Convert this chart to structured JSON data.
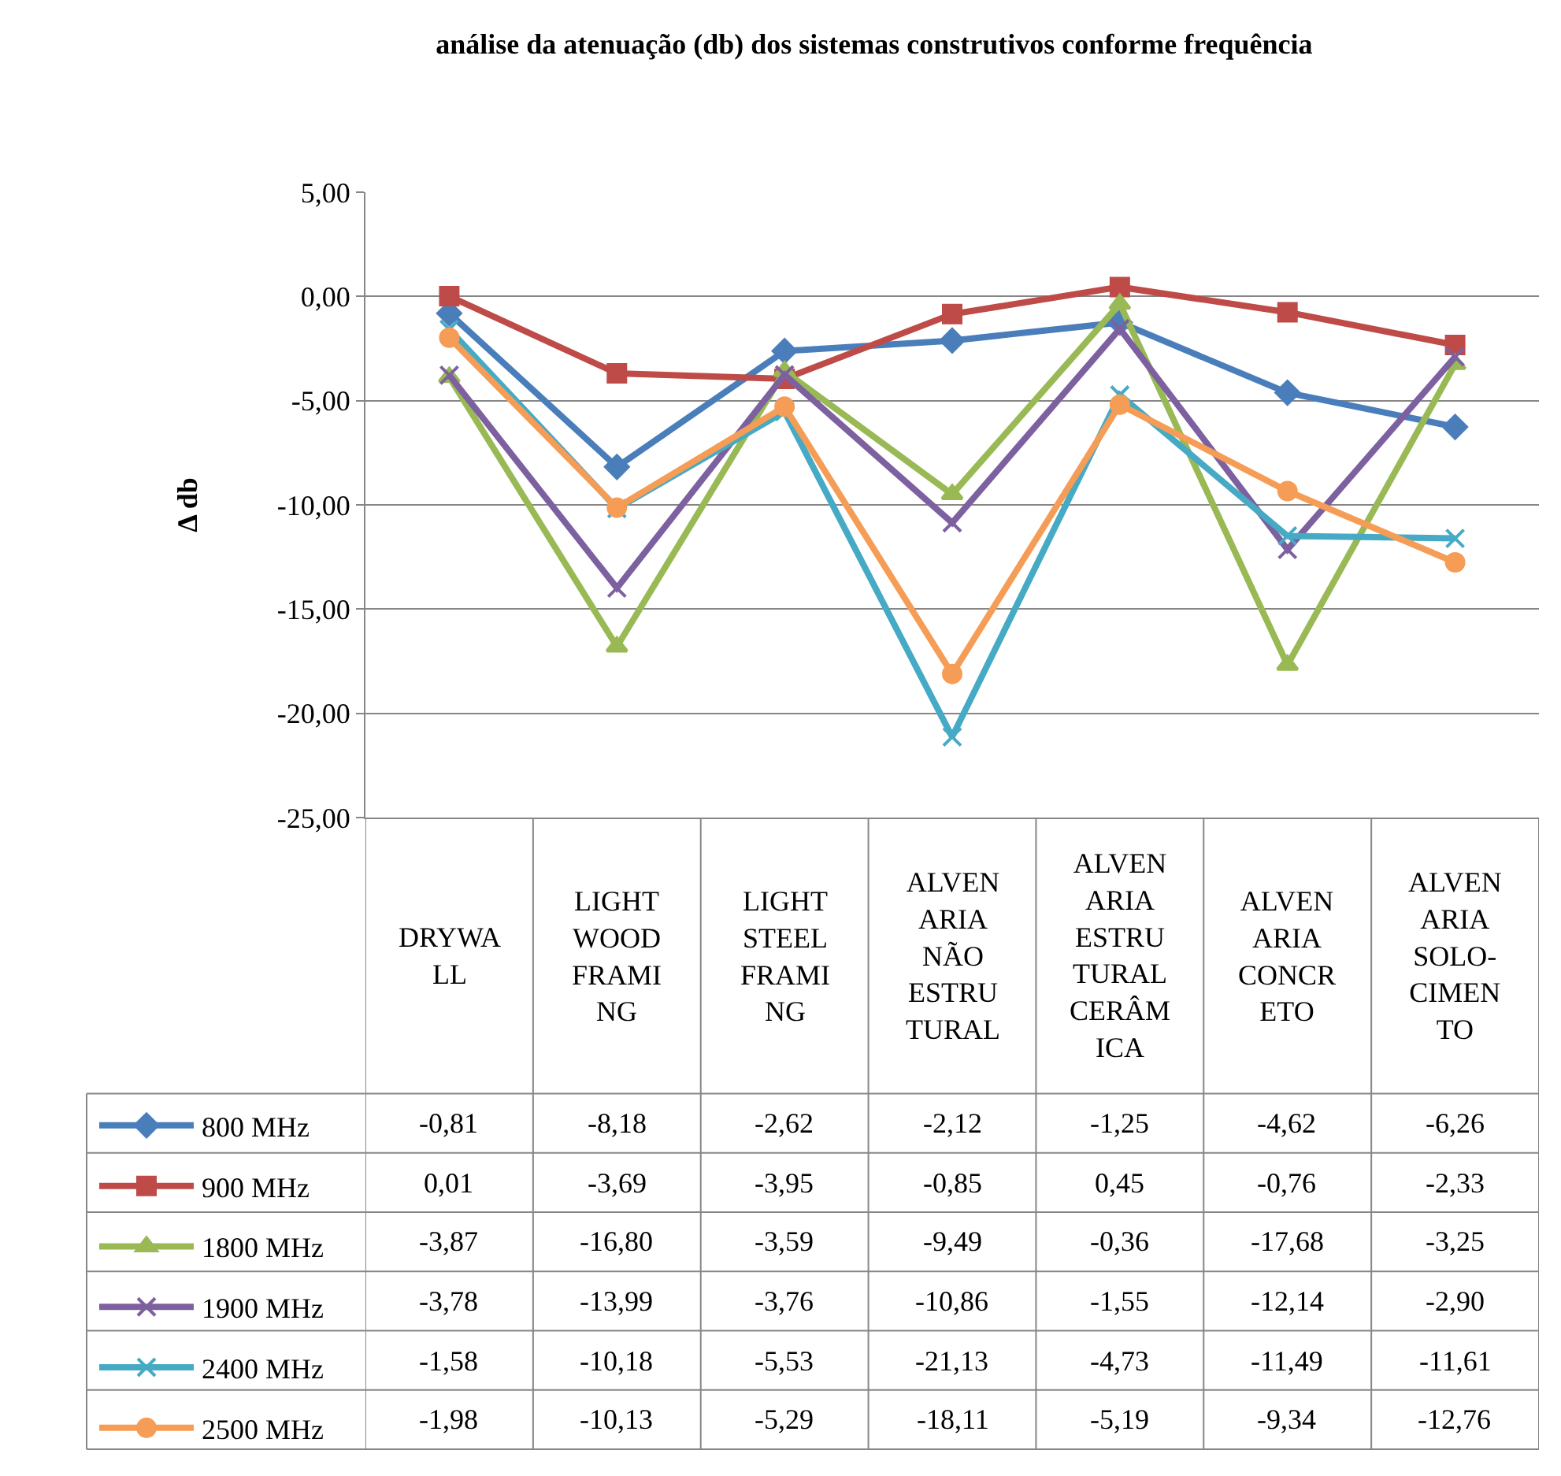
{
  "chart_data": {
    "type": "line",
    "title": "análise da atenuação (db) dos sistemas construtivos conforme frequência",
    "ylabel": "Δ db",
    "categories": [
      "DRYWALL",
      "LIGHT WOOD FRAMING",
      "LIGHT STEEL FRAMING",
      "ALVENARIA NÃO ESTRUTURAL",
      "ALVENARIA ESTRUTURAL CERÂMICA",
      "ALVENARIA CONCRETO",
      "ALVENARIA SOLO-CIMENTO"
    ],
    "ylim": [
      -25,
      5
    ],
    "yticks": [
      {
        "value": -25,
        "label": "-25,00"
      },
      {
        "value": -20,
        "label": "-20,00"
      },
      {
        "value": -15,
        "label": "-15,00"
      },
      {
        "value": -10,
        "label": "-10,00"
      },
      {
        "value": -5,
        "label": "-5,00"
      },
      {
        "value": 0,
        "label": "0,00"
      },
      {
        "value": 5,
        "label": "5,00"
      }
    ],
    "grid": "y",
    "legend": "bottom left",
    "line_style": "solid",
    "series": [
      {
        "name": "800 MHz",
        "color": "#4a7ebb",
        "marker": "diamond",
        "values": [
          -0.81,
          -8.18,
          -2.62,
          -2.12,
          -1.25,
          -4.62,
          -6.26
        ],
        "value_labels": [
          "-0,81",
          "-8,18",
          "-2,62",
          "-2,12",
          "-1,25",
          "-4,62",
          "-6,26"
        ]
      },
      {
        "name": "900 MHz",
        "color": "#be4b48",
        "marker": "square",
        "values": [
          0.01,
          -3.69,
          -3.95,
          -0.85,
          0.45,
          -0.76,
          -2.33
        ],
        "value_labels": [
          "0,01",
          "-3,69",
          "-3,95",
          "-0,85",
          "0,45",
          "-0,76",
          "-2,33"
        ]
      },
      {
        "name": "1800 MHz",
        "color": "#98b954",
        "marker": "triangle",
        "values": [
          -3.87,
          -16.8,
          -3.59,
          -9.49,
          -0.36,
          -17.68,
          -3.25
        ],
        "value_labels": [
          "-3,87",
          "-16,80",
          "-3,59",
          "-9,49",
          "-0,36",
          "-17,68",
          "-3,25"
        ]
      },
      {
        "name": "1900 MHz",
        "color": "#7d60a0",
        "marker": "cross",
        "values": [
          -3.78,
          -13.99,
          -3.76,
          -10.86,
          -1.55,
          -12.14,
          -2.9
        ],
        "value_labels": [
          "-3,78",
          "-13,99",
          "-3,76",
          "-10,86",
          "-1,55",
          "-12,14",
          "-2,90"
        ]
      },
      {
        "name": "2400 MHz",
        "color": "#46aac5",
        "marker": "cross",
        "values": [
          -1.58,
          -10.18,
          -5.53,
          -21.13,
          -4.73,
          -11.49,
          -11.61
        ],
        "value_labels": [
          "-1,58",
          "-10,18",
          "-5,53",
          "-21,13",
          "-4,73",
          "-11,49",
          "-11,61"
        ]
      },
      {
        "name": "2500 MHz",
        "color": "#f59d56",
        "marker": "circle",
        "values": [
          -1.98,
          -10.13,
          -5.29,
          -18.11,
          -5.19,
          -9.34,
          -12.76
        ],
        "value_labels": [
          "-1,98",
          "-10,13",
          "-5,29",
          "-18,11",
          "-5,19",
          "-9,34",
          "-12,76"
        ]
      }
    ]
  }
}
